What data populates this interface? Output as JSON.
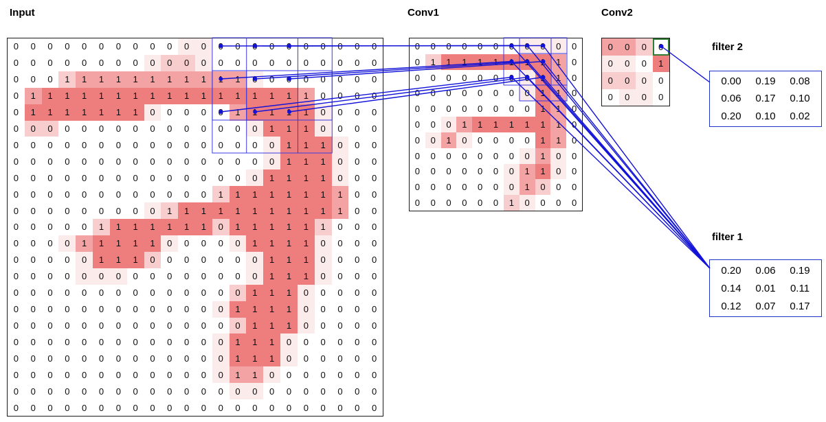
{
  "labels": {
    "input": "Input",
    "conv1": "Conv1",
    "conv2": "Conv2",
    "filter1": "filter 1",
    "filter2": "filter 2"
  },
  "colors": {
    "line": "#1212d8",
    "window_border": "#3a3ae0",
    "highlight": "#2e7d32",
    "grid_border": "#1a1a1a",
    "filter_border": "#2233cc",
    "shades": [
      "#ffffff",
      "#fcebeb",
      "#f8cdcd",
      "#f3a3a3",
      "#ee7e7e"
    ]
  },
  "input_grid": {
    "rows": 23,
    "cols": 22,
    "values": [
      "0000000000000000000000",
      "0000000000000000000000",
      "0001111111111100000000",
      "0111111111111111110000",
      "0111111100000111110000",
      "0000000000000001110000",
      "0000000000000000111000",
      "0000000000000000111000",
      "0000000000000001111000",
      "0000000000001111111100",
      "0000000001111111111100",
      "0000011111110111111000",
      "0000111110000011110000",
      "0000011100000001110000",
      "0000000000000001110000",
      "0000000000000011100000",
      "0000000000000111100000",
      "0000000000000011100000",
      "0000000000000111000000",
      "0000000000000111000000",
      "0000000000000110000000",
      "0000000000000000000000",
      "0000000000000000000000"
    ],
    "shades": [
      "0000000000110000000000",
      "0000000012210000000000",
      "0002333333333310000000",
      "0344444444444444430000",
      "0444444410000344441000",
      "0220000000000014441000",
      "0000000000000001444100",
      "0000000000000001444100",
      "0000000000000014444100",
      "0000000000002444444300",
      "0000000012444444444300",
      "0000024444442444442000",
      "0001344441000144441000",
      "0000144420000014441000",
      "0000111000000014441000",
      "0000000000000244410000",
      "0000000000001444410000",
      "0000000000000244410000",
      "0000000000001444100000",
      "0000000000001444100000",
      "0000000000001331000000",
      "0000000000000110000000",
      "0000000000000000000000"
    ]
  },
  "conv1_grid": {
    "rows": 11,
    "cols": 11,
    "values": [
      "00000000000",
      "01111111110",
      "00000000110",
      "00000000110",
      "00000000110",
      "00011111110",
      "00100000110",
      "00000000100",
      "00000001100",
      "00000001000",
      "00000010000"
    ],
    "shades": [
      "00000001110",
      "02444444430",
      "00000001430",
      "00000001430",
      "00000000430",
      "00134444430",
      "01310000430",
      "00000001310",
      "00000013410",
      "00000013200",
      "00000021000"
    ]
  },
  "conv2_grid": {
    "rows": 4,
    "cols": 4,
    "values": [
      "0000",
      "0001",
      "0000",
      "0000"
    ],
    "shades": [
      "3320",
      "1104",
      "2210",
      "0110"
    ],
    "highlight": [
      0,
      3
    ]
  },
  "filter2": {
    "rows": [
      [
        "0.00",
        "0.19",
        "0.08"
      ],
      [
        "0.06",
        "0.17",
        "0.10"
      ],
      [
        "0.20",
        "0.10",
        "0.02"
      ]
    ]
  },
  "filter1": {
    "rows": [
      [
        "0.20",
        "0.06",
        "0.19"
      ],
      [
        "0.14",
        "0.01",
        "0.11"
      ],
      [
        "0.12",
        "0.07",
        "0.17"
      ]
    ]
  },
  "connections": {
    "input_to_conv1": [
      {
        "from": [
          0,
          12
        ],
        "to": [
          0,
          6
        ]
      },
      {
        "from": [
          0,
          14
        ],
        "to": [
          0,
          7
        ]
      },
      {
        "from": [
          0,
          16
        ],
        "to": [
          0,
          8
        ]
      },
      {
        "from": [
          2,
          12
        ],
        "to": [
          1,
          6
        ]
      },
      {
        "from": [
          2,
          14
        ],
        "to": [
          1,
          7
        ]
      },
      {
        "from": [
          2,
          16
        ],
        "to": [
          1,
          8
        ]
      },
      {
        "from": [
          4,
          12
        ],
        "to": [
          2,
          6
        ]
      },
      {
        "from": [
          4,
          14
        ],
        "to": [
          2,
          7
        ]
      },
      {
        "from": [
          4,
          16
        ],
        "to": [
          2,
          8
        ]
      }
    ],
    "conv1_to_filter1_cells": [
      [
        0,
        6
      ],
      [
        0,
        7
      ],
      [
        0,
        8
      ],
      [
        1,
        6
      ],
      [
        1,
        7
      ],
      [
        1,
        8
      ],
      [
        2,
        6
      ],
      [
        2,
        7
      ],
      [
        2,
        8
      ]
    ],
    "conv2_to_filter2_cells": [
      [
        0,
        3
      ]
    ],
    "input_windows": [
      {
        "r": 0,
        "c": 12,
        "w": 5,
        "h": 5
      },
      {
        "r": 0,
        "c": 14,
        "w": 5,
        "h": 5
      },
      {
        "r": 2,
        "c": 12,
        "w": 5,
        "h": 5
      },
      {
        "r": 2,
        "c": 14,
        "w": 5,
        "h": 5
      }
    ],
    "conv1_windows": [
      {
        "r": 0,
        "c": 6,
        "w": 3,
        "h": 3
      },
      {
        "r": 0,
        "c": 7,
        "w": 3,
        "h": 3
      },
      {
        "r": 1,
        "c": 7,
        "w": 3,
        "h": 3
      }
    ]
  }
}
